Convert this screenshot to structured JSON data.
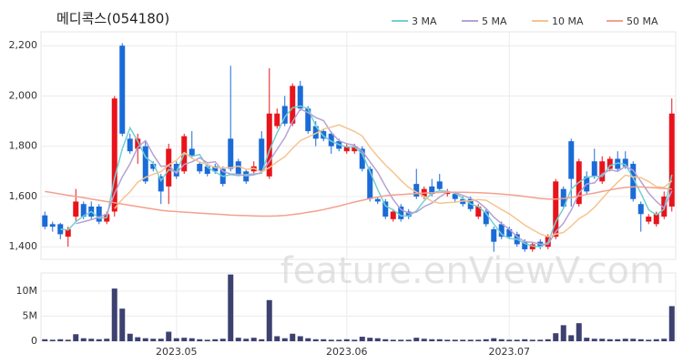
{
  "watermark": "feature.enViewV.com",
  "chart_data": [
    {
      "type": "candlestick",
      "title": "메디콕스(054180)",
      "up_color": "#e8141b",
      "down_color": "#1a6bd8",
      "open": [
        1525,
        1490,
        1490,
        1440,
        1520,
        1570,
        1560,
        1560,
        1500,
        1540,
        2200,
        1830,
        1790,
        1800,
        1730,
        1680,
        1640,
        1730,
        1700,
        1790,
        1730,
        1720,
        1720,
        1710,
        1830,
        1740,
        1700,
        1700,
        1830,
        1680,
        1880,
        1960,
        1890,
        2040,
        1950,
        1880,
        1860,
        1850,
        1820,
        1780,
        1780,
        1790,
        1710,
        1590,
        1580,
        1510,
        1560,
        1540,
        1650,
        1600,
        1640,
        1660,
        1610,
        1610,
        1590,
        1590,
        1520,
        1540,
        1470,
        1490,
        1470,
        1450,
        1420,
        1390,
        1420,
        1400,
        1440,
        1630,
        1820,
        1570,
        1680,
        1740,
        1660,
        1710,
        1750,
        1750,
        1730,
        1570,
        1500,
        1490,
        1520,
        1560
      ],
      "high": [
        1540,
        1500,
        1495,
        1480,
        1630,
        1580,
        1580,
        1570,
        1540,
        2000,
        2210,
        1850,
        1850,
        1820,
        1740,
        1690,
        1810,
        1740,
        1850,
        1860,
        1740,
        1730,
        1730,
        1720,
        2120,
        1750,
        1710,
        1740,
        1860,
        2110,
        1950,
        2000,
        2050,
        2060,
        1960,
        1900,
        1870,
        1860,
        1830,
        1810,
        1810,
        1800,
        1720,
        1600,
        1590,
        1550,
        1570,
        1550,
        1710,
        1640,
        1670,
        1690,
        1630,
        1620,
        1600,
        1600,
        1570,
        1550,
        1480,
        1500,
        1480,
        1460,
        1430,
        1420,
        1430,
        1450,
        1670,
        1640,
        1830,
        1750,
        1700,
        1790,
        1760,
        1760,
        1780,
        1780,
        1740,
        1580,
        1530,
        1540,
        1620,
        1990
      ],
      "low": [
        1470,
        1460,
        1430,
        1400,
        1500,
        1510,
        1510,
        1490,
        1490,
        1520,
        1840,
        1770,
        1730,
        1650,
        1700,
        1570,
        1570,
        1670,
        1690,
        1750,
        1690,
        1680,
        1690,
        1640,
        1700,
        1680,
        1650,
        1690,
        1690,
        1670,
        1870,
        1880,
        1880,
        1940,
        1850,
        1800,
        1820,
        1770,
        1780,
        1770,
        1770,
        1700,
        1580,
        1570,
        1510,
        1500,
        1500,
        1510,
        1590,
        1590,
        1600,
        1620,
        1600,
        1580,
        1560,
        1540,
        1510,
        1480,
        1380,
        1430,
        1430,
        1400,
        1380,
        1380,
        1390,
        1390,
        1430,
        1550,
        1560,
        1560,
        1610,
        1670,
        1650,
        1700,
        1700,
        1710,
        1580,
        1460,
        1490,
        1480,
        1510,
        1540
      ],
      "close": [
        1480,
        1480,
        1450,
        1470,
        1580,
        1520,
        1520,
        1500,
        1530,
        1990,
        1850,
        1780,
        1830,
        1660,
        1710,
        1620,
        1790,
        1680,
        1840,
        1760,
        1700,
        1690,
        1700,
        1650,
        1710,
        1690,
        1660,
        1720,
        1700,
        1930,
        1930,
        1890,
        2040,
        1950,
        1860,
        1830,
        1830,
        1800,
        1790,
        1800,
        1800,
        1710,
        1590,
        1580,
        1520,
        1540,
        1510,
        1520,
        1600,
        1630,
        1610,
        1630,
        1620,
        1590,
        1570,
        1550,
        1560,
        1490,
        1420,
        1440,
        1440,
        1410,
        1390,
        1410,
        1400,
        1440,
        1660,
        1560,
        1670,
        1740,
        1620,
        1680,
        1740,
        1750,
        1710,
        1720,
        1590,
        1530,
        1520,
        1530,
        1600,
        1930
      ],
      "series": [
        {
          "name": "3 MA",
          "color": "#72d0d0",
          "values": [
            null,
            null,
            1470,
            1467,
            1500,
            1523,
            1540,
            1513,
            1517,
            1673,
            1790,
            1873,
            1820,
            1757,
            1733,
            1663,
            1707,
            1697,
            1770,
            1760,
            1767,
            1717,
            1697,
            1680,
            1687,
            1683,
            1687,
            1690,
            1693,
            1783,
            1853,
            1917,
            1953,
            1960,
            1950,
            1880,
            1840,
            1820,
            1807,
            1797,
            1797,
            1770,
            1700,
            1627,
            1563,
            1547,
            1523,
            1523,
            1543,
            1583,
            1613,
            1623,
            1620,
            1613,
            1593,
            1570,
            1560,
            1533,
            1490,
            1450,
            1433,
            1430,
            1413,
            1403,
            1400,
            1417,
            1500,
            1553,
            1630,
            1657,
            1677,
            1680,
            1680,
            1723,
            1733,
            1727,
            1673,
            1613,
            1547,
            1527,
            1550,
            1687
          ]
        },
        {
          "name": "5 MA",
          "color": "#b4a2d4",
          "values": [
            null,
            null,
            null,
            null,
            1492,
            1500,
            1508,
            1518,
            1530,
            1612,
            1678,
            1730,
            1796,
            1822,
            1766,
            1720,
            1722,
            1692,
            1728,
            1738,
            1754,
            1734,
            1738,
            1700,
            1690,
            1688,
            1682,
            1686,
            1696,
            1740,
            1788,
            1834,
            1898,
            1948,
            1934,
            1914,
            1902,
            1854,
            1822,
            1810,
            1804,
            1780,
            1738,
            1696,
            1640,
            1588,
            1548,
            1534,
            1538,
            1560,
            1574,
            1598,
            1618,
            1616,
            1604,
            1592,
            1578,
            1552,
            1518,
            1492,
            1470,
            1440,
            1420,
            1418,
            1410,
            1410,
            1460,
            1494,
            1546,
            1614,
            1650,
            1654,
            1690,
            1706,
            1700,
            1720,
            1704,
            1660,
            1614,
            1580,
            1554,
            1622
          ]
        },
        {
          "name": "10 MA",
          "color": "#f5c48f",
          "values": [
            null,
            null,
            null,
            null,
            null,
            null,
            null,
            null,
            null,
            1552,
            1589,
            1619,
            1657,
            1676,
            1689,
            1699,
            1726,
            1744,
            1775,
            1752,
            1737,
            1728,
            1715,
            1714,
            1714,
            1721,
            1708,
            1712,
            1698,
            1715,
            1738,
            1758,
            1792,
            1822,
            1837,
            1851,
            1868,
            1876,
            1885,
            1872,
            1859,
            1841,
            1796,
            1759,
            1725,
            1696,
            1664,
            1636,
            1617,
            1600,
            1581,
            1573,
            1576,
            1577,
            1582,
            1583,
            1588,
            1585,
            1567,
            1548,
            1531,
            1509,
            1486,
            1468,
            1451,
            1440,
            1450,
            1457,
            1482,
            1512,
            1530,
            1557,
            1592,
            1626,
            1657,
            1685,
            1678,
            1675,
            1660,
            1639,
            1637,
            1662
          ]
        },
        {
          "name": "50 MA",
          "color": "#f4a08e",
          "values": [
            1620,
            1615,
            1610,
            1605,
            1600,
            1595,
            1590,
            1585,
            1580,
            1575,
            1570,
            1565,
            1560,
            1555,
            1550,
            1545,
            1542,
            1540,
            1538,
            1536,
            1534,
            1532,
            1530,
            1528,
            1526,
            1525,
            1524,
            1523,
            1522,
            1522,
            1523,
            1525,
            1528,
            1532,
            1537,
            1542,
            1548,
            1555,
            1562,
            1570,
            1578,
            1585,
            1592,
            1598,
            1603,
            1606,
            1608,
            1610,
            1612,
            1614,
            1615,
            1616,
            1617,
            1617,
            1617,
            1616,
            1615,
            1614,
            1612,
            1610,
            1607,
            1604,
            1600,
            1596,
            1592,
            1590,
            1590,
            1592,
            1596,
            1602,
            1608,
            1614,
            1620,
            1626,
            1632,
            1636,
            1638,
            1638,
            1636,
            1634,
            1632,
            1630
          ]
        }
      ],
      "ylim": [
        1350,
        2255
      ],
      "yticks": [
        {
          "value": 1400,
          "label": "1,400"
        },
        {
          "value": 1600,
          "label": "1,600"
        },
        {
          "value": 1800,
          "label": "1,800"
        },
        {
          "value": 2000,
          "label": "2,000"
        },
        {
          "value": 2200,
          "label": "2,200"
        }
      ],
      "grid": true,
      "legend": "top-right"
    },
    {
      "type": "bar",
      "color": "#3d4170",
      "categories": [
        null,
        null,
        null,
        null,
        null,
        null,
        null,
        null,
        null,
        null,
        null,
        null,
        null,
        null,
        null,
        null,
        null,
        "2023.05",
        null,
        null,
        null,
        null,
        null,
        null,
        null,
        null,
        null,
        null,
        null,
        null,
        null,
        null,
        null,
        null,
        null,
        null,
        null,
        null,
        null,
        "2023.06",
        null,
        null,
        null,
        null,
        null,
        null,
        null,
        null,
        null,
        null,
        null,
        null,
        null,
        null,
        null,
        null,
        null,
        null,
        null,
        null,
        "2023.07",
        null,
        null,
        null,
        null,
        null,
        null,
        null,
        null,
        null,
        null,
        null,
        null,
        null,
        null,
        null,
        null,
        null,
        null,
        null,
        null,
        null
      ],
      "values": [
        400000,
        300000,
        400000,
        300000,
        1400000,
        600000,
        500000,
        400000,
        500000,
        10500000,
        6500000,
        1500000,
        800000,
        600000,
        500000,
        500000,
        1900000,
        600000,
        700000,
        600000,
        400000,
        300000,
        400000,
        500000,
        13300000,
        700000,
        500000,
        700000,
        400000,
        8200000,
        1000000,
        600000,
        1500000,
        1000000,
        600000,
        400000,
        400000,
        300000,
        300000,
        400000,
        300000,
        900000,
        700000,
        600000,
        400000,
        300000,
        300000,
        300000,
        700000,
        500000,
        400000,
        400000,
        300000,
        300000,
        300000,
        300000,
        300000,
        400000,
        600000,
        400000,
        300000,
        300000,
        400000,
        300000,
        300000,
        400000,
        1600000,
        3200000,
        1200000,
        3600000,
        700000,
        500000,
        500000,
        400000,
        400000,
        500000,
        500000,
        400000,
        300000,
        400000,
        500000,
        7000000
      ],
      "ylim": [
        0,
        13600000
      ],
      "yticks": [
        0,
        {
          "value": 5000000,
          "label": "5M"
        },
        {
          "value": 10000000,
          "label": "10M"
        }
      ],
      "grid": true
    }
  ]
}
